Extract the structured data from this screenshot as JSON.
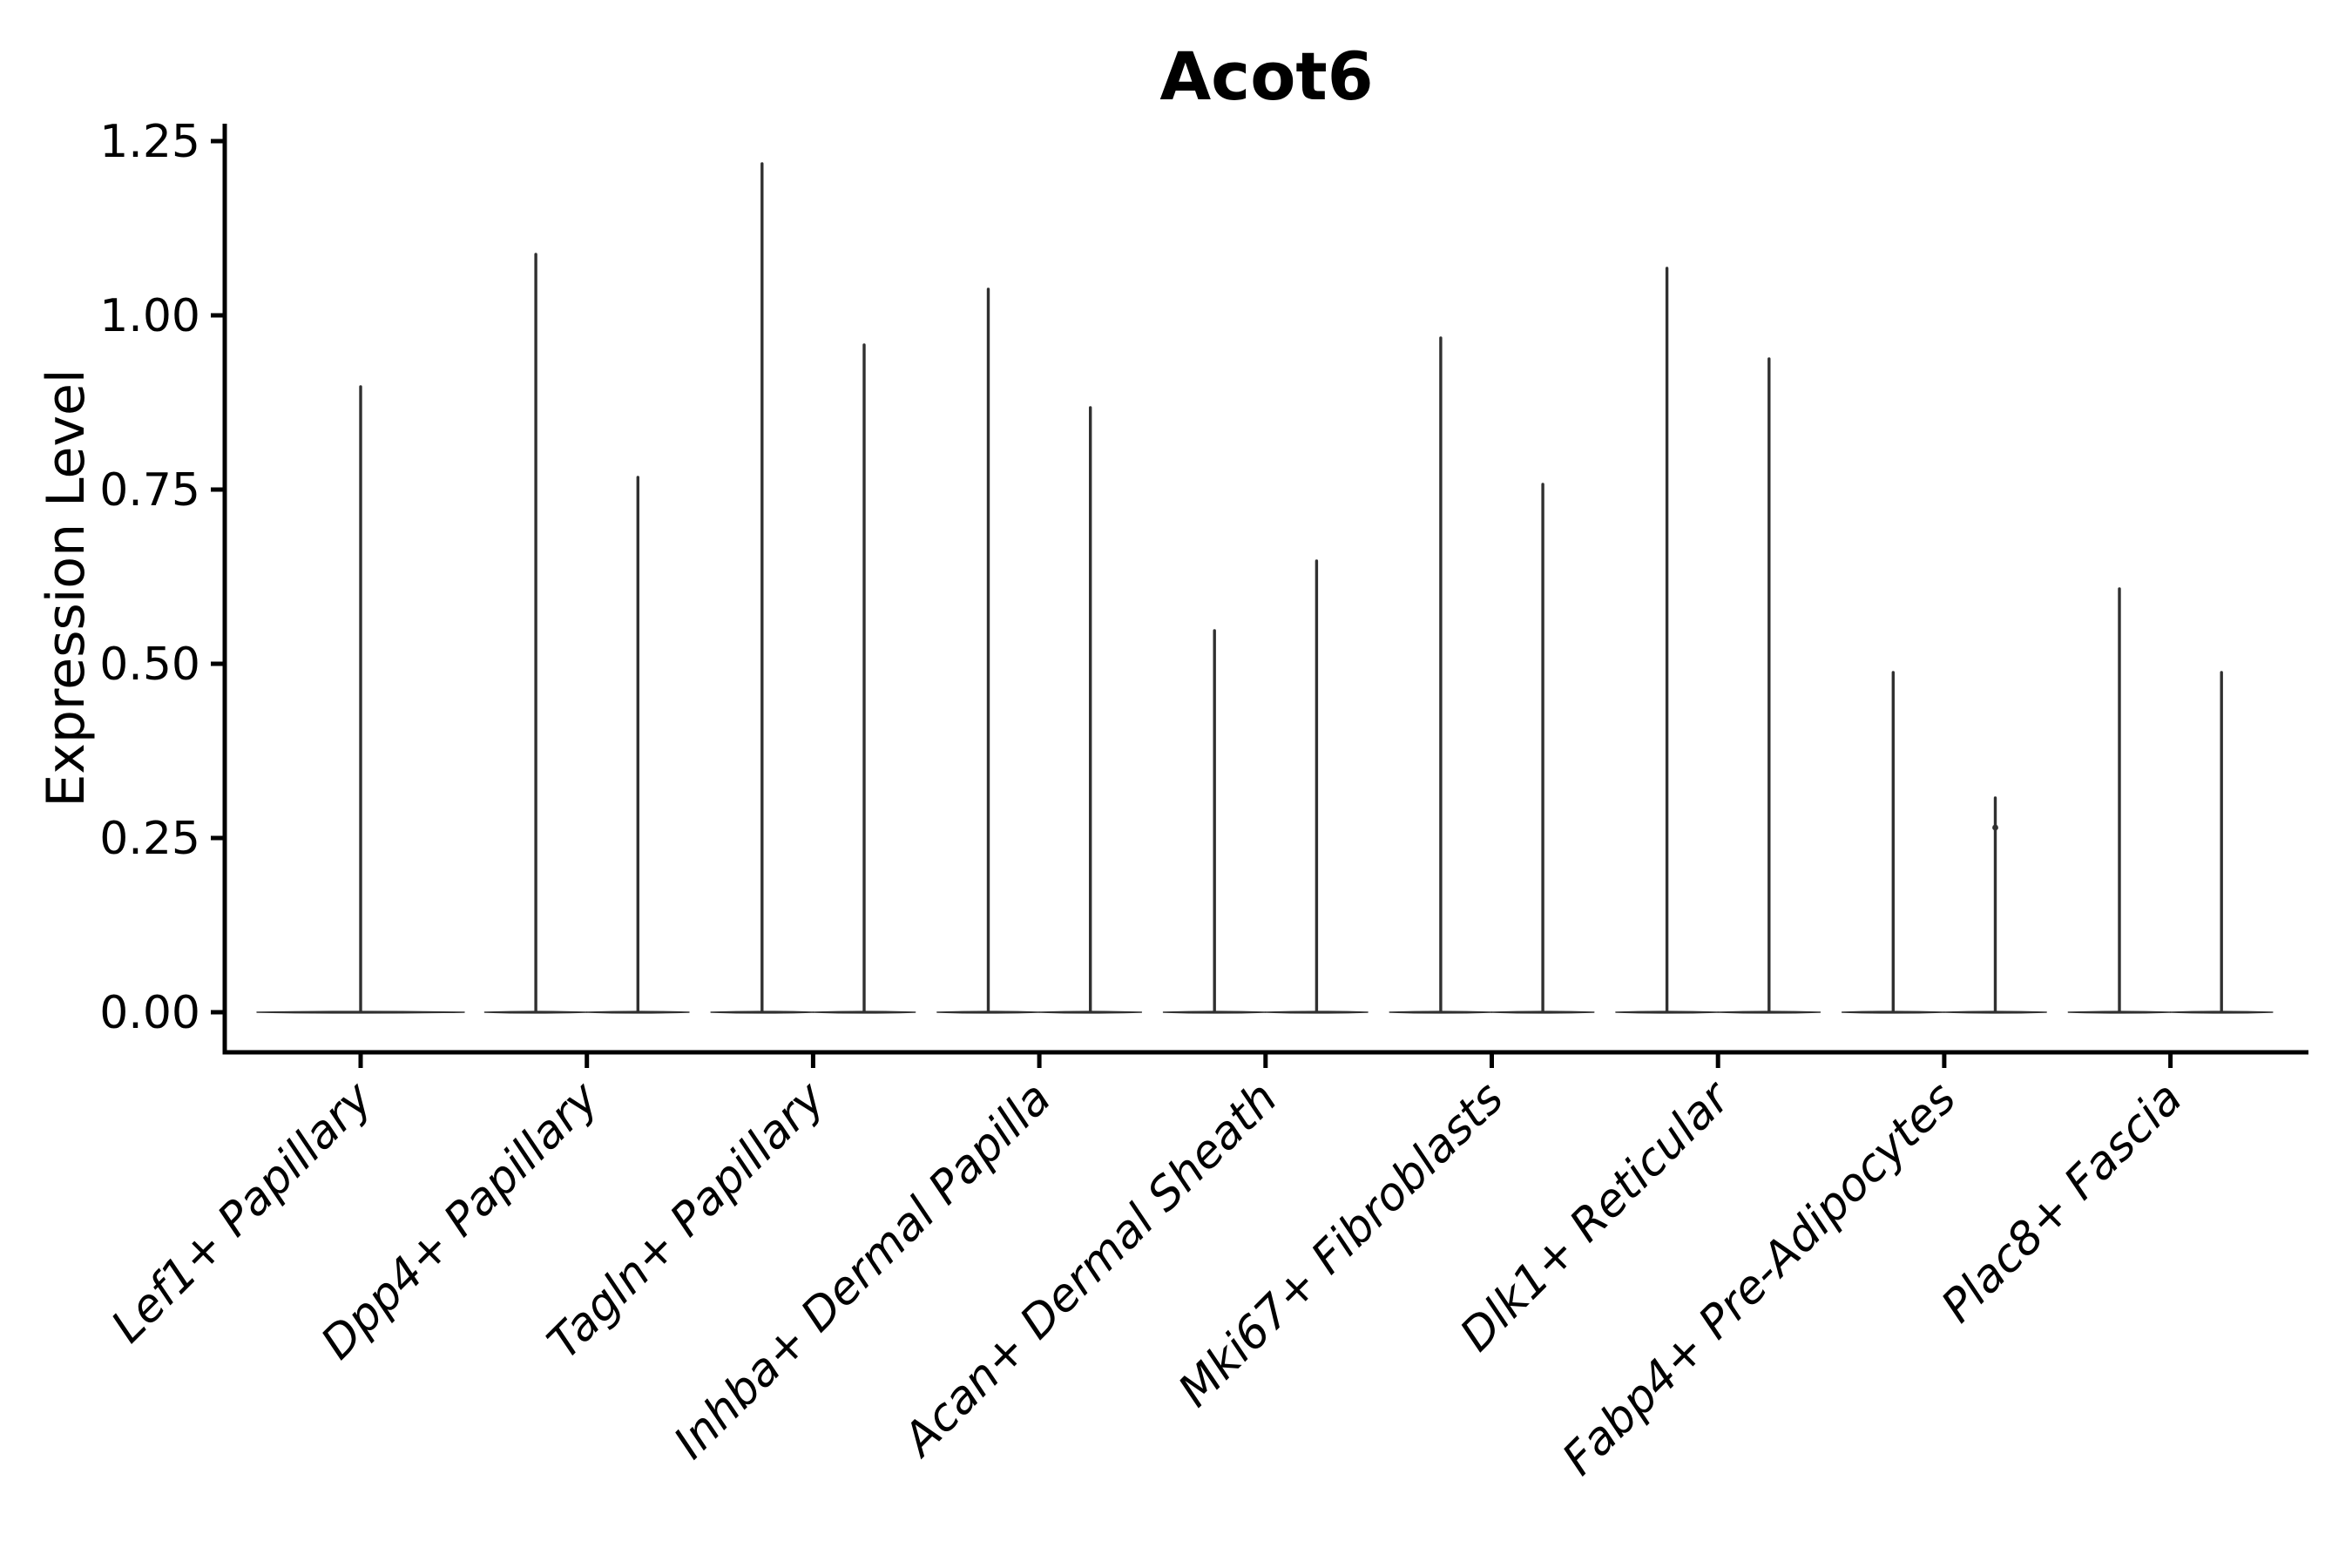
{
  "figure": {
    "title": "Acot6",
    "ylabel": "Expression Level"
  },
  "chart_data": {
    "type": "violin",
    "title": "Acot6",
    "xlabel": "",
    "ylabel": "Expression Level",
    "ylim": [
      0,
      1.25
    ],
    "yticks": [
      "0.00",
      "0.25",
      "0.50",
      "0.75",
      "1.00",
      "1.25"
    ],
    "ytick_values": [
      0,
      0.25,
      0.5,
      0.75,
      1.0,
      1.25
    ],
    "x_tick_rotation": 45,
    "grid": false,
    "legend": "none",
    "violin_color": "#303030",
    "axis_color": "#000000",
    "background_color": "#ffffff",
    "note": "Sparse single-cell expression: each violin collapses to a flat base at 0 with a thin spike rising to the max expression value; first category has one centered violin, all others have two side-by-side violins",
    "groups": [
      {
        "category": "Lef1+ Papillary",
        "violins": [
          {
            "max": 0.9
          }
        ]
      },
      {
        "category": "Dpp4+ Papillary",
        "violins": [
          {
            "max": 1.09
          },
          {
            "max": 0.77
          }
        ]
      },
      {
        "category": "Tagln+ Papillary",
        "violins": [
          {
            "max": 1.22
          },
          {
            "max": 0.96
          }
        ]
      },
      {
        "category": "Inhba+ Dermal Papilla",
        "violins": [
          {
            "max": 1.04
          },
          {
            "max": 0.87
          }
        ]
      },
      {
        "category": "Acan+ Dermal Sheath",
        "violins": [
          {
            "max": 0.55
          },
          {
            "max": 0.65
          }
        ]
      },
      {
        "category": "Mki67+ Fibroblasts",
        "violins": [
          {
            "max": 0.97
          },
          {
            "max": 0.76
          }
        ]
      },
      {
        "category": "Dlk1+ Reticular",
        "violins": [
          {
            "max": 1.07
          },
          {
            "max": 0.94
          }
        ]
      },
      {
        "category": "Fabp4+ Pre-Adipocytes",
        "violins": [
          {
            "max": 0.49
          },
          {
            "max": 0.31,
            "dot": 0.265
          }
        ]
      },
      {
        "category": "Plac8+ Fascia",
        "violins": [
          {
            "max": 0.61
          },
          {
            "max": 0.49
          }
        ]
      }
    ]
  }
}
